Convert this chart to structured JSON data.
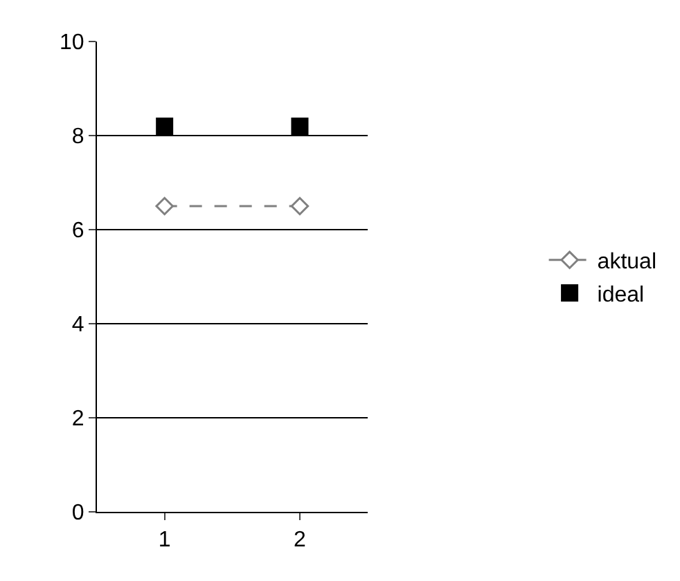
{
  "chart_data": {
    "type": "line",
    "categories": [
      "1",
      "2"
    ],
    "series": [
      {
        "name": "aktual",
        "color": "#808080",
        "values": [
          6.5,
          6.5
        ],
        "marker": "diamond",
        "line_style": "dashed"
      },
      {
        "name": "ideal",
        "type": "scatter",
        "color": "#000000",
        "values": [
          8.2,
          8.2
        ],
        "marker": "square"
      }
    ],
    "ylim": [
      0,
      10
    ],
    "yticks": [
      0,
      2,
      4,
      6,
      8,
      10
    ],
    "grid": "y",
    "legend": "right"
  }
}
